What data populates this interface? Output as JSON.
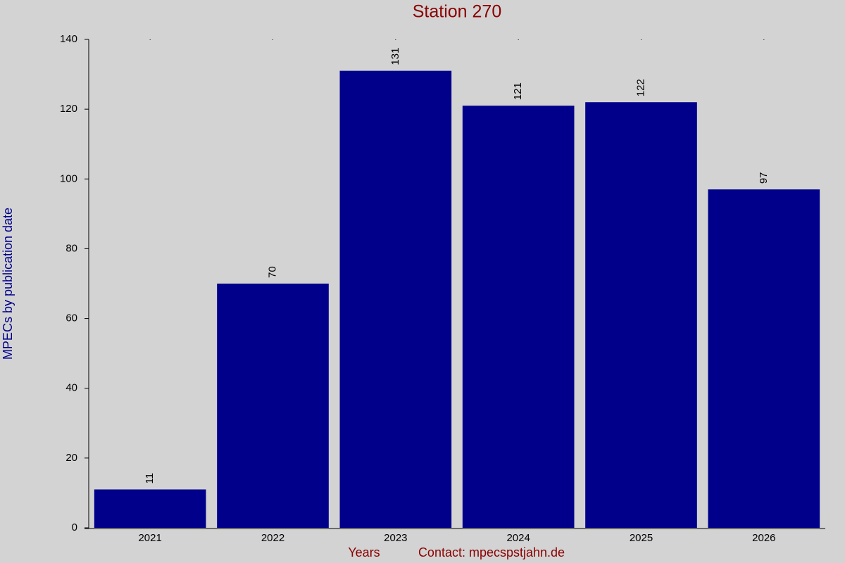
{
  "chart_data": {
    "type": "bar",
    "title": "Station 270",
    "xlabel": "Years",
    "ylabel": "MPECs by publication date",
    "annotation": "Contact: mpecspstjahn.de",
    "categories": [
      "2021",
      "2022",
      "2023",
      "2024",
      "2025",
      "2026"
    ],
    "values": [
      11,
      70,
      131,
      121,
      122,
      97
    ],
    "color": "#00008b",
    "ylim": [
      0,
      140
    ],
    "yticks": [
      0,
      20,
      40,
      60,
      80,
      100,
      120,
      140
    ],
    "grid": false
  }
}
